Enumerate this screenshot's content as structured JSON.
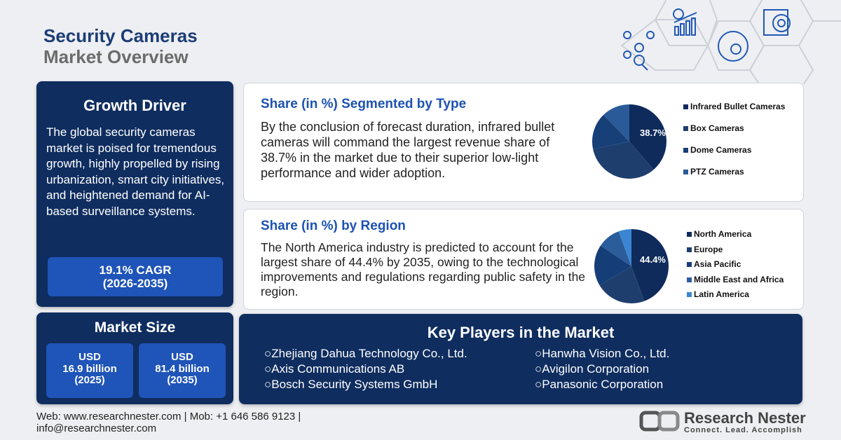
{
  "header": {
    "title_line1": "Security Cameras",
    "title_line2": "Market Overview"
  },
  "header_icons": [
    "network-analysis-icon",
    "growth-chart-icon",
    "global-market-icon",
    "target-clipboard-icon"
  ],
  "growth_driver": {
    "title": "Growth Driver",
    "text": "The global security cameras market is poised for tremendous growth, highly propelled by rising urbanization, smart city initiatives, and heightened demand for AI-based surveillance systems.",
    "cagr": "19.1% CAGR",
    "period": "(2026-2035)"
  },
  "market_size": {
    "title": "Market Size",
    "boxes": [
      {
        "currency": "USD",
        "value": "16.9 billion",
        "year": "(2025)"
      },
      {
        "currency": "USD",
        "value": "81.4 billion",
        "year": "(2035)"
      }
    ]
  },
  "type_card": {
    "title": "Share (in %) Segmented by Type",
    "text": "By the conclusion of forecast duration, infrared bullet cameras will command the largest revenue share of 38.7% in the market due to their superior low-light performance and wider adoption.",
    "label": "38.7%"
  },
  "region_card": {
    "title": "Share (in %) by Region",
    "text": "The North America industry is predicted to account for the largest share of 44.4% by 2035, owing to the technological improvements and regulations regarding public safety in the region.",
    "label": "44.4%"
  },
  "chart_data": [
    {
      "type": "pie",
      "categories": [
        "Infrared Bullet Cameras",
        "Box Cameras",
        "Dome Cameras",
        "PTZ Cameras"
      ],
      "values": [
        38.7,
        33,
        16,
        12.3
      ],
      "colors": [
        "#0f2b5c",
        "#1e3f6e",
        "#173f78",
        "#2a5b98"
      ],
      "legend": "right"
    },
    {
      "type": "pie",
      "categories": [
        "North America",
        "Europe",
        "Asia Pacific",
        "Middle East and Africa",
        "Latin America"
      ],
      "values": [
        44.4,
        22,
        18,
        10,
        5.6
      ],
      "colors": [
        "#0f2b5c",
        "#1e3f6e",
        "#153d78",
        "#2b5d9b",
        "#3a86d4"
      ],
      "legend": "right"
    }
  ],
  "key_players": {
    "title": "Key Players in the Market",
    "left": [
      "Zhejiang Dahua Technology Co., Ltd.",
      "Axis Communications AB",
      "Bosch Security Systems GmbH"
    ],
    "right": [
      "Hanwha Vision Co., Ltd.",
      "Avigilon Corporation",
      "Panasonic Corporation"
    ]
  },
  "footer": {
    "line1": "Web: www.researchnester.com | Mob: +1 646 586 9123 |",
    "line2": "info@researchnester.com"
  },
  "logo": {
    "name": "Research Nester",
    "tagline": "Connect. Lead. Accomplish"
  }
}
